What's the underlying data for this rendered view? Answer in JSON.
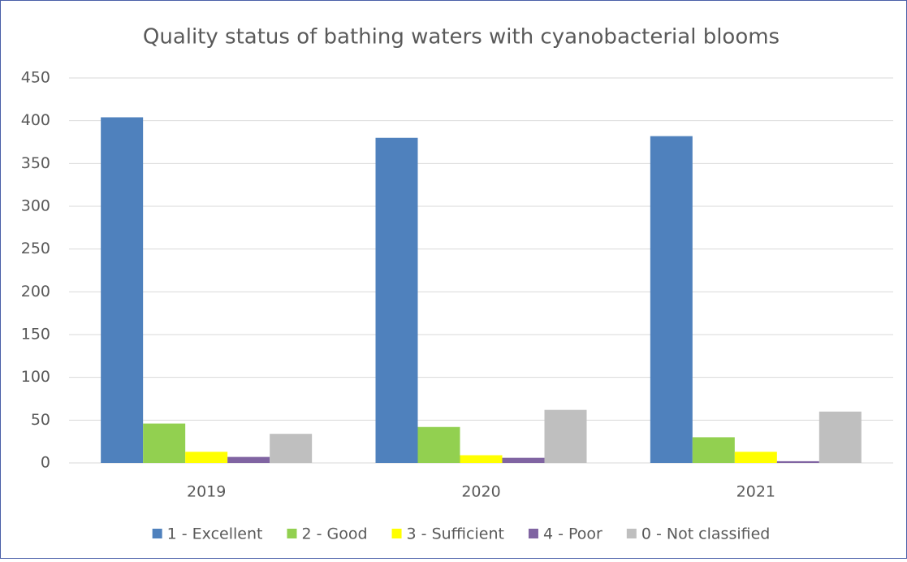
{
  "chart_data": {
    "type": "bar",
    "title": "Quality status of bathing waters with cyanobacterial blooms",
    "categories": [
      "2019",
      "2020",
      "2021"
    ],
    "series": [
      {
        "name": "1 - Excellent",
        "color": "#4f81bd",
        "values": [
          404,
          380,
          382
        ]
      },
      {
        "name": "2 - Good",
        "color": "#92d050",
        "values": [
          46,
          42,
          30
        ]
      },
      {
        "name": "3 - Sufficient",
        "color": "#ffff00",
        "values": [
          13,
          9,
          13
        ]
      },
      {
        "name": "4 - Poor",
        "color": "#8064a2",
        "values": [
          7,
          6,
          2
        ]
      },
      {
        "name": "0 - Not classified",
        "color": "#bfbfbf",
        "values": [
          34,
          62,
          60
        ]
      }
    ],
    "ylim": [
      0,
      450
    ],
    "yticks": [
      0,
      50,
      100,
      150,
      200,
      250,
      300,
      350,
      400,
      450
    ],
    "grid": true,
    "legend": "bottom"
  }
}
